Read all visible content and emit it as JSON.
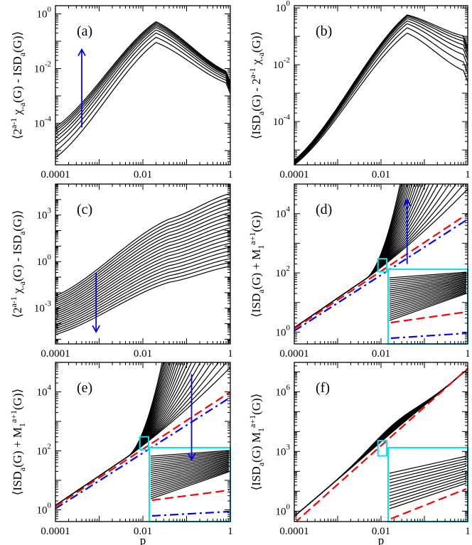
{
  "figure": {
    "xlabel": "p"
  },
  "chart_data": [
    {
      "id": "a",
      "type": "line",
      "panel_label": "(a)",
      "ylabel": "⟨2^{a-1} χ_{-a}(G) - ISD_a(G)⟩",
      "xscale": "log",
      "yscale": "log",
      "xlim": [
        0.0001,
        1
      ],
      "ylim": [
        3e-06,
        2
      ],
      "xticks": [
        "0.0001",
        "0.01",
        "1"
      ],
      "yticks": [
        {
          "mantissa": "10",
          "exp": "0",
          "value": 1
        },
        {
          "mantissa": "10",
          "exp": "-2",
          "value": 0.01
        },
        {
          "mantissa": "10",
          "exp": "-4",
          "value": 0.0001
        }
      ],
      "arrow": {
        "direction": "up",
        "x": 0.0004,
        "y_from": 7e-05,
        "y_to": 0.05,
        "color": "#0000ff"
      },
      "curve_count": 9,
      "series_description": "family of curves peaking near p=0.02",
      "peak_x": 0.02,
      "peaks": [
        0.09,
        0.14,
        0.2,
        0.26,
        0.32,
        0.37,
        0.42,
        0.47,
        0.52
      ],
      "start_values": [
        5.5e-06,
        9.5e-06,
        1.5e-05,
        2.2e-05,
        3e-05,
        4e-05,
        5e-05,
        6e-05,
        7.2e-05
      ],
      "end_values": [
        0.0012,
        0.0015,
        0.0018,
        0.0021,
        0.0024,
        0.0026,
        0.0028,
        0.003,
        0.0032
      ]
    },
    {
      "id": "b",
      "type": "line",
      "panel_label": "(b)",
      "ylabel": "⟨ISD_a(G) - 2^{a-1} χ_{-a}(G)⟩",
      "xscale": "log",
      "yscale": "log",
      "xlim": [
        0.0001,
        1
      ],
      "ylim": [
        3e-06,
        1.2
      ],
      "xticks": [
        "0.0001",
        "0.01",
        "1"
      ],
      "yticks": [
        {
          "mantissa": "10",
          "exp": "0",
          "value": 1
        },
        {
          "mantissa": "10",
          "exp": "-2",
          "value": 0.01
        },
        {
          "mantissa": "10",
          "exp": "-4",
          "value": 0.0001
        }
      ],
      "curve_count": 8,
      "peak_x": 0.04,
      "peaks": [
        0.13,
        0.2,
        0.28,
        0.35,
        0.42,
        0.48,
        0.53,
        0.57
      ],
      "start_values": [
        3e-06,
        3.2e-06,
        3.4e-06,
        3.6e-06,
        3.8e-06,
        4e-06,
        4.2e-06,
        4.4e-06
      ],
      "end_values": [
        0.0025,
        0.005,
        0.009,
        0.014,
        0.02,
        0.027,
        0.034,
        0.041
      ]
    },
    {
      "id": "c",
      "type": "line",
      "panel_label": "(c)",
      "ylabel": "⟨2^{a-1} χ_{-a}(G) - ISD_a(G)⟩",
      "xscale": "log",
      "yscale": "log",
      "xlim": [
        0.0001,
        1
      ],
      "ylim": [
        5e-06,
        100000
      ],
      "xticks": [
        "0.0001",
        "0.01",
        "1"
      ],
      "yticks": [
        {
          "mantissa": "10",
          "exp": "3",
          "value": 1000
        },
        {
          "mantissa": "10",
          "exp": "0",
          "value": 1
        },
        {
          "mantissa": "10",
          "exp": "-3",
          "value": 0.001
        }
      ],
      "arrow": {
        "direction": "down",
        "x": 0.00085,
        "y_from": 0.2,
        "y_to": 3e-05,
        "color": "#0000ff"
      },
      "curve_count": 20,
      "start_values_range": [
        2e-05,
        0.006
      ],
      "end_values_range": [
        0.5,
        25000
      ]
    },
    {
      "id": "d",
      "type": "line",
      "panel_label": "(d)",
      "ylabel": "⟨ISD_a(G) + M_1^{a+1}(G)⟩",
      "xscale": "log",
      "yscale": "log",
      "xlim": [
        0.0001,
        1
      ],
      "ylim": [
        0.4,
        100000
      ],
      "xticks": [
        "0.0001",
        "0.01",
        "1"
      ],
      "yticks": [
        {
          "mantissa": "10",
          "exp": "4",
          "value": 10000
        },
        {
          "mantissa": "10",
          "exp": "2",
          "value": 100
        },
        {
          "mantissa": "10",
          "exp": "0",
          "value": 1
        }
      ],
      "arrow": {
        "direction": "up",
        "x": 0.04,
        "y_from": 200,
        "y_to": 30000,
        "color": "#0000ff"
      },
      "curve_count": 22,
      "lower_bound_line": {
        "style": "dashed",
        "color": "#ff0000",
        "from": [
          0.0001,
          1.3
        ],
        "to": [
          1,
          10000
        ]
      },
      "upper_bound_line": {
        "style": "dash-dot",
        "color": "#0000ff",
        "from": [
          0.0001,
          1.1
        ],
        "to": [
          1,
          6500
        ]
      },
      "inset": {
        "color": "#00e5ee",
        "zoom_x": [
          0.0085,
          0.0135
        ],
        "zoom_y": [
          110,
          300
        ]
      }
    },
    {
      "id": "e",
      "type": "line",
      "panel_label": "(e)",
      "ylabel": "⟨ISD_a(G) + M_1^{a+1}(G)⟩",
      "xscale": "log",
      "yscale": "log",
      "xlim": [
        0.0001,
        1
      ],
      "ylim": [
        0.4,
        100000
      ],
      "xticks": [
        "0.0001",
        "0.01",
        "1"
      ],
      "yticks": [
        {
          "mantissa": "10",
          "exp": "4",
          "value": 10000
        },
        {
          "mantissa": "10",
          "exp": "2",
          "value": 100
        },
        {
          "mantissa": "10",
          "exp": "0",
          "value": 1
        }
      ],
      "arrow": {
        "direction": "down",
        "x": 0.13,
        "y_from": 40000,
        "y_to": 50,
        "color": "#0000ff"
      },
      "curve_count": 22,
      "lower_bound_line": {
        "style": "dashed",
        "color": "#ff0000",
        "from": [
          0.0001,
          1.3
        ],
        "to": [
          1,
          10000
        ]
      },
      "upper_bound_line": {
        "style": "dash-dot",
        "color": "#0000ff",
        "from": [
          0.0001,
          1.1
        ],
        "to": [
          1,
          6500
        ]
      },
      "inset": {
        "color": "#00e5ee",
        "zoom_x": [
          0.0085,
          0.0135
        ],
        "zoom_y": [
          110,
          300
        ]
      }
    },
    {
      "id": "f",
      "type": "line",
      "panel_label": "(f)",
      "ylabel": "⟨ISD_a(G) M_1^{a+1}(G)⟩",
      "xscale": "log",
      "yscale": "log",
      "xlim": [
        0.0001,
        1
      ],
      "ylim": [
        0.3,
        30000000
      ],
      "xticks": [
        "0.0001",
        "0.01",
        "1"
      ],
      "yticks": [
        {
          "mantissa": "10",
          "exp": "6",
          "value": 1000000
        },
        {
          "mantissa": "10",
          "exp": "3",
          "value": 1000
        },
        {
          "mantissa": "10",
          "exp": "0",
          "value": 1
        }
      ],
      "curve_count": 12,
      "bound_line": {
        "style": "dashed",
        "color": "#ff0000",
        "from": [
          0.0001,
          0.25
        ],
        "to": [
          1,
          15000000
        ]
      },
      "inset": {
        "color": "#00e5ee",
        "zoom_x": [
          0.0085,
          0.0135
        ],
        "zoom_y": [
          600,
          3500
        ]
      }
    }
  ]
}
